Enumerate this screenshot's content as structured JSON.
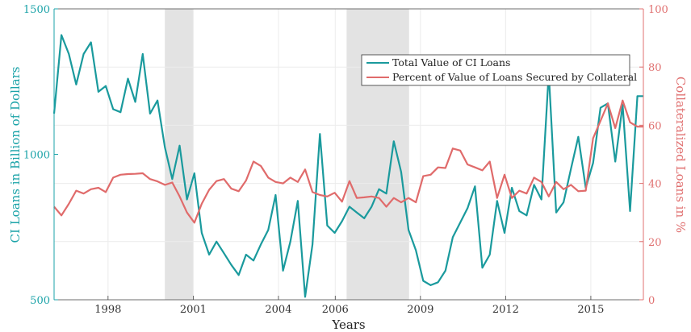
{
  "chart_data": {
    "type": "line",
    "xlabel": "Years",
    "ylabel_left": "CI Loans in Billion of Dollars",
    "ylabel_right": "Collateralized Loans in %",
    "xlim": [
      1996.1,
      2016.85
    ],
    "ylim_left": [
      500,
      1500
    ],
    "ylim_right": [
      0,
      100
    ],
    "x_ticks": [
      1998,
      2001,
      2004,
      2006,
      2009,
      2012,
      2015
    ],
    "y_ticks_left": [
      500,
      1000,
      1500
    ],
    "y_ticks_right": [
      0,
      20,
      40,
      60,
      80,
      100
    ],
    "grid": true,
    "legend_position": "upper-right",
    "colors": {
      "left_axis": "#1ba3a8",
      "right_axis": "#e07070",
      "shade": "#e3e3e3"
    },
    "shaded_regions": [
      [
        2000.0,
        2001.0
      ],
      [
        2006.4,
        2008.6
      ]
    ],
    "series": [
      {
        "name": "Total Value of CI Loans",
        "axis": "left",
        "color": "#1a9a9d",
        "x": [
          1996.1,
          1996.36,
          1996.62,
          1996.88,
          1997.14,
          1997.4,
          1997.66,
          1997.92,
          1998.18,
          1998.44,
          1998.7,
          1998.96,
          1999.22,
          1999.48,
          1999.74,
          2000.0,
          2000.26,
          2000.52,
          2000.78,
          2001.04,
          2001.3,
          2001.56,
          2001.82,
          2002.08,
          2002.34,
          2002.6,
          2002.86,
          2003.12,
          2003.38,
          2003.64,
          2003.9,
          2004.16,
          2004.42,
          2004.68,
          2004.94,
          2005.2,
          2005.46,
          2005.72,
          2005.98,
          2006.24,
          2006.5,
          2006.76,
          2007.02,
          2007.28,
          2007.54,
          2007.8,
          2008.06,
          2008.32,
          2008.58,
          2008.84,
          2009.1,
          2009.36,
          2009.62,
          2009.88,
          2010.14,
          2010.4,
          2010.66,
          2010.92,
          2011.18,
          2011.44,
          2011.7,
          2011.96,
          2012.22,
          2012.48,
          2012.74,
          2013.0,
          2013.26,
          2013.52,
          2013.78,
          2014.04,
          2014.3,
          2014.56,
          2014.82,
          2015.08,
          2015.34,
          2015.6,
          2015.86,
          2016.12,
          2016.38,
          2016.64,
          2016.85
        ],
        "values": [
          1140,
          1410,
          1345,
          1240,
          1345,
          1385,
          1215,
          1235,
          1155,
          1145,
          1260,
          1180,
          1345,
          1140,
          1185,
          1025,
          915,
          1030,
          845,
          935,
          730,
          655,
          700,
          660,
          620,
          585,
          655,
          635,
          690,
          740,
          860,
          600,
          700,
          840,
          510,
          690,
          1070,
          755,
          730,
          770,
          820,
          800,
          780,
          820,
          880,
          865,
          1045,
          940,
          740,
          670,
          565,
          550,
          560,
          600,
          715,
          765,
          815,
          890,
          610,
          655,
          840,
          730,
          885,
          805,
          790,
          895,
          845,
          1280,
          800,
          835,
          950,
          1060,
          885,
          970,
          1160,
          1175,
          975,
          1170,
          805,
          1200,
          1200
        ]
      },
      {
        "name": "Percent of Value of Loans Secured by Collateral",
        "axis": "right",
        "color": "#e06b6b",
        "x": [
          1996.1,
          1996.36,
          1996.62,
          1996.88,
          1997.14,
          1997.4,
          1997.66,
          1997.92,
          1998.18,
          1998.44,
          1998.7,
          1998.96,
          1999.22,
          1999.48,
          1999.74,
          2000.0,
          2000.26,
          2000.52,
          2000.78,
          2001.04,
          2001.3,
          2001.56,
          2001.82,
          2002.08,
          2002.34,
          2002.6,
          2002.86,
          2003.12,
          2003.38,
          2003.64,
          2003.9,
          2004.16,
          2004.42,
          2004.68,
          2004.94,
          2005.2,
          2005.46,
          2005.72,
          2005.98,
          2006.24,
          2006.5,
          2006.76,
          2007.02,
          2007.28,
          2007.54,
          2007.8,
          2008.06,
          2008.32,
          2008.58,
          2008.84,
          2009.1,
          2009.36,
          2009.62,
          2009.88,
          2010.14,
          2010.4,
          2010.66,
          2010.92,
          2011.18,
          2011.44,
          2011.7,
          2011.96,
          2012.22,
          2012.48,
          2012.74,
          2013.0,
          2013.26,
          2013.52,
          2013.78,
          2014.04,
          2014.3,
          2014.56,
          2014.82,
          2015.08,
          2015.34,
          2015.6,
          2015.86,
          2016.12,
          2016.38,
          2016.64,
          2016.85
        ],
        "values": [
          32,
          29,
          33,
          37.5,
          36.5,
          38,
          38.5,
          37,
          42,
          43,
          43.2,
          43.3,
          43.5,
          41.5,
          40.7,
          39.5,
          40.3,
          35.5,
          30,
          26.5,
          33,
          37.8,
          40.8,
          41.5,
          38.2,
          37.3,
          41,
          47.5,
          46,
          42,
          40.5,
          40,
          42,
          40.5,
          44.8,
          37,
          36,
          35.5,
          36.8,
          33.7,
          40.8,
          35,
          35.2,
          35.5,
          35,
          32,
          35,
          33.5,
          35,
          33.5,
          42.5,
          43,
          45.5,
          45.3,
          52,
          51.3,
          46.5,
          45.5,
          44.5,
          47.5,
          35,
          43,
          35,
          37.5,
          36.5,
          42,
          40.5,
          35.5,
          40.5,
          38,
          39.5,
          37.3,
          37.5,
          55.5,
          61.5,
          67.5,
          59,
          68.5,
          61,
          59.5,
          59.5
        ]
      }
    ]
  }
}
